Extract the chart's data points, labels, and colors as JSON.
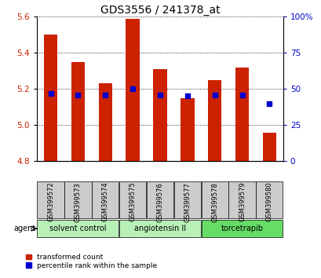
{
  "title": "GDS3556 / 241378_at",
  "samples": [
    "GSM399572",
    "GSM399573",
    "GSM399574",
    "GSM399575",
    "GSM399576",
    "GSM399577",
    "GSM399578",
    "GSM399579",
    "GSM399580"
  ],
  "transformed_counts": [
    5.5,
    5.35,
    5.23,
    5.59,
    5.31,
    5.15,
    5.25,
    5.32,
    4.96
  ],
  "percentile_ranks": [
    47,
    46,
    46,
    50,
    46,
    45,
    46,
    46,
    40
  ],
  "ylim_left": [
    4.8,
    5.6
  ],
  "ylim_right": [
    0,
    100
  ],
  "yticks_left": [
    4.8,
    5.0,
    5.2,
    5.4,
    5.6
  ],
  "yticks_right": [
    0,
    25,
    50,
    75,
    100
  ],
  "bar_color": "#cc2200",
  "dot_color": "#0000cc",
  "bar_width": 0.5,
  "group_boundaries": [
    {
      "label": "solvent control",
      "start": 0,
      "end": 2,
      "color": "#b8f0b8"
    },
    {
      "label": "angiotensin II",
      "start": 3,
      "end": 5,
      "color": "#b8f0b8"
    },
    {
      "label": "torcetrapib",
      "start": 6,
      "end": 8,
      "color": "#66dd66"
    }
  ],
  "agent_label": "agent",
  "background_color": "#ffffff",
  "sample_bg_color": "#cccccc",
  "title_fontsize": 10,
  "tick_fontsize": 7.5,
  "sample_fontsize": 6,
  "agent_fontsize": 7,
  "legend_fontsize": 6.5
}
